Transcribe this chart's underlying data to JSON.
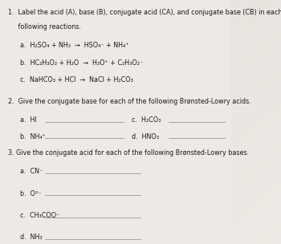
{
  "bg_color_top": "#c8c4c0",
  "bg_color": "#c8c4c0",
  "paper_color": "#edeae6",
  "section1_line1": "1.  Label the acid (A), base (B), conjugate acid (CA), and conjugate base (CB) in each of the",
  "section1_line2": "     following reactions.",
  "section1_items": [
    "a.  H₂SO₄ + NH₃  →  HSO₄⁻ + NH₄⁺",
    "b.  HC₂H₃O₂ + H₂O  →  H₃O⁺ + C₂H₃O₂⁻",
    "c.  NaHCO₃ + HCl  →  NaCl + H₂CO₃"
  ],
  "section2_title": "2.  Give the conjugate base for each of the following Brønsted-Lowry acids.",
  "section2_left": [
    "a.  HI",
    "b.  NH₄⁺"
  ],
  "section2_right": [
    "c.  H₂CO₃",
    "d.  HNO₃"
  ],
  "section3_title": "3. Give the conjugate acid for each of the following Brønsted-Lowry bases.",
  "section3_items": [
    "a.  CN⁻",
    "b.  O²⁻",
    "c.  CH₃COO⁻",
    "d.  NH₃"
  ],
  "line_color": "#888888",
  "text_color": "#1a1a1a",
  "fs": 5.8
}
